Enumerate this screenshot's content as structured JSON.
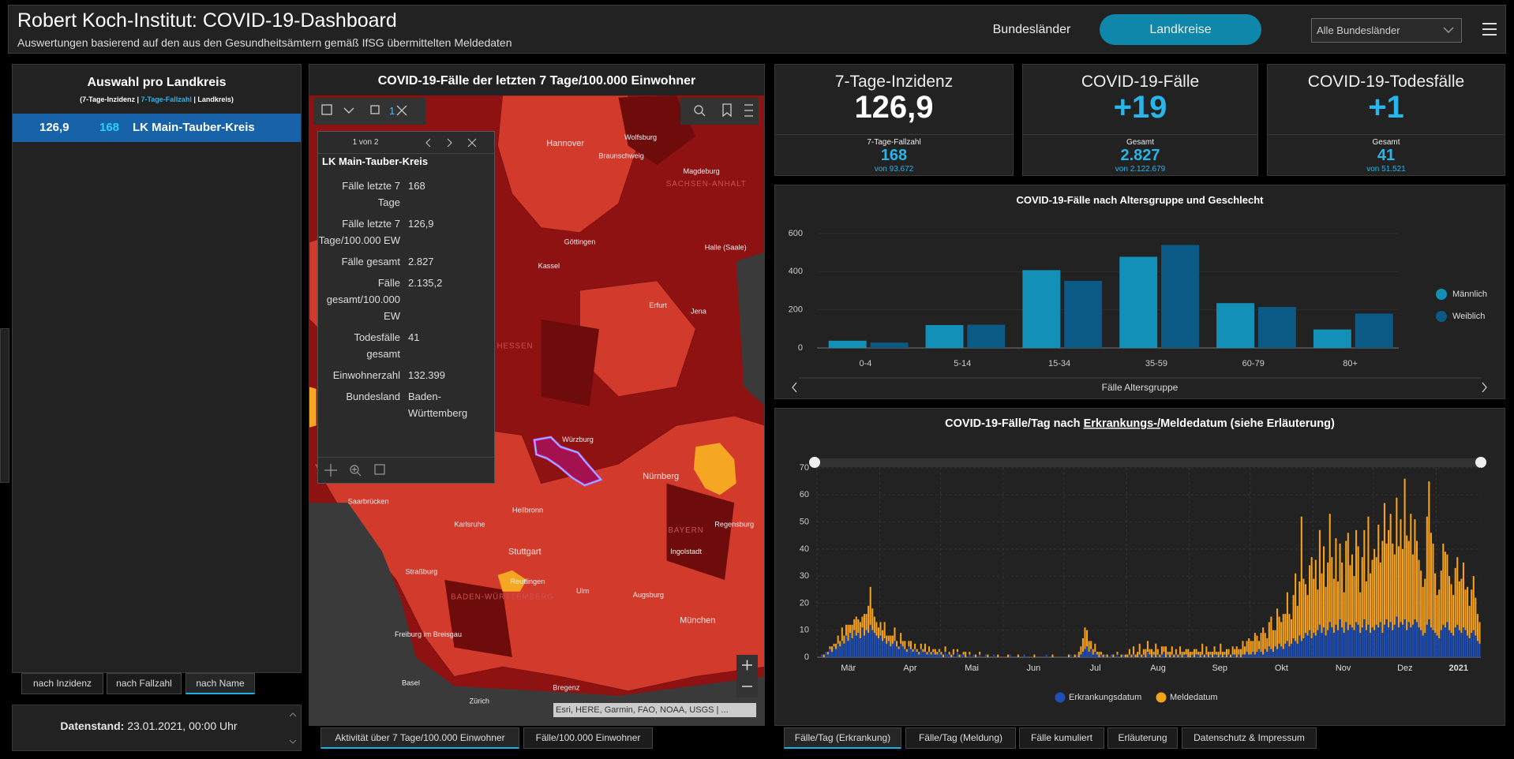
{
  "header": {
    "title": "Robert Koch-Institut: COVID-19-Dashboard",
    "subtitle": "Auswertungen basierend auf den aus den Gesundheitsämtern gemäß IfSG übermittelten Meldedaten",
    "tabs": [
      "Bundesländer",
      "Landkreise"
    ],
    "active_tab": 1,
    "dropdown": "Alle Bundesländer"
  },
  "left_panel": {
    "title": "Auswahl pro Landkreis",
    "subtitle_parts": [
      "(7-Tage-Inzidenz | ",
      "7-Tage-Fallzahl",
      " | Landkreis)"
    ],
    "rows": [
      [
        "126,9",
        "168",
        "LK Main-Tauber-Kreis"
      ]
    ],
    "sort_buttons": [
      "nach Inzidenz",
      "nach Fallzahl",
      "nach Name"
    ],
    "active_sort": 2,
    "date_label": "Datenstand:",
    "date_value": "23.01.2021, 00:00 Uhr"
  },
  "map": {
    "title": "COVID-19-Fälle der letzten 7 Tage/100.000 Einwohner",
    "selection_count": "1",
    "labels": [
      "Hannover",
      "Wolfsburg",
      "Braunschweig",
      "Magdeburg",
      "SACHSEN-ANHALT",
      "Göttingen",
      "Kassel",
      "Halle (Saale)",
      "Erfurt",
      "Jena",
      "HESSEN",
      "Würzburg",
      "Nürnberg",
      "Saarbrücken",
      "Heilbronn",
      "Karlsruhe",
      "BAYERN",
      "Regensburg",
      "Ingolstadt",
      "Stuttgart",
      "Straßburg",
      "Reutlingen",
      "BADEN-WÜRTTEMBERG",
      "Ulm",
      "Augsburg",
      "München",
      "Freiburg im Breisgau",
      "Basel",
      "Zürich",
      "Bregenz"
    ],
    "attribution": "Esri, HERE, Garmin, FAO, NOAA, USGS | ...",
    "popup": {
      "pager": "1 von 2",
      "title": "LK Main-Tauber-Kreis",
      "fields": [
        [
          "Fälle letzte 7 Tage",
          "168"
        ],
        [
          "Fälle letzte 7 Tage/100.000 EW",
          "126,9"
        ],
        [
          "Fälle gesamt",
          "2.827"
        ],
        [
          "Fälle gesamt/100.000 EW",
          "2.135,2"
        ],
        [
          "Todesfälle gesamt",
          "41"
        ],
        [
          "Einwohnerzahl",
          "132.399"
        ],
        [
          "Bundesland",
          "Baden-Württemberg"
        ]
      ]
    },
    "tabs": [
      "Aktivität über 7 Tage/100.000 Einwohner",
      "Fälle/100.000 Einwohner"
    ],
    "active_tab": 0
  },
  "kpis": [
    {
      "title": "7-Tage-Inzidenz",
      "value": "126,9",
      "color": "#ffffff",
      "sub_label": "7-Tage-Fallzahl",
      "sub_value": "168",
      "total": "von 93.672"
    },
    {
      "title": "COVID-19-Fälle",
      "value": "+19",
      "color": "#27b5ea",
      "sub_label": "Gesamt",
      "sub_value": "2.827",
      "total": "von 2.122.679"
    },
    {
      "title": "COVID-19-Todesfälle",
      "value": "+1",
      "color": "#27b5ea",
      "sub_label": "Gesamt",
      "sub_value": "41",
      "total": "von 51.521"
    }
  ],
  "age_chart": {
    "type": "bar",
    "title": "COVID-19-Fälle nach Altersgruppe und Geschlecht",
    "xlabel": "Fälle Altersgruppe",
    "categories": [
      "0-4",
      "5-14",
      "15-34",
      "35-59",
      "60-79",
      "80+"
    ],
    "series": [
      {
        "name": "Männlich",
        "color": "#1390b8",
        "values": [
          38,
          120,
          408,
          478,
          235,
          97
        ]
      },
      {
        "name": "Weiblich",
        "color": "#0b5a86",
        "values": [
          28,
          122,
          352,
          540,
          215,
          180
        ]
      }
    ],
    "ylim": [
      0,
      600
    ],
    "yticks": [
      0,
      200,
      400,
      600
    ],
    "grid": true,
    "legend": "right"
  },
  "daily_chart": {
    "type": "bar",
    "stacked": true,
    "title_parts": [
      "COVID-19-Fälle/Tag nach ",
      "Erkrankungs-/",
      "Meldedatum (siehe Erläuterung)"
    ],
    "xlim": [
      "2020-03-01",
      "2021-01-23"
    ],
    "xticks": [
      {
        "value": "2020-03-01",
        "label": "Mär"
      },
      {
        "value": "2020-04-01",
        "label": "Apr"
      },
      {
        "value": "2020-05-01",
        "label": "Mai"
      },
      {
        "value": "2020-06-01",
        "label": "Jun"
      },
      {
        "value": "2020-07-01",
        "label": "Jul"
      },
      {
        "value": "2020-08-01",
        "label": "Aug"
      },
      {
        "value": "2020-09-01",
        "label": "Sep"
      },
      {
        "value": "2020-10-01",
        "label": "Okt"
      },
      {
        "value": "2020-11-01",
        "label": "Nov"
      },
      {
        "value": "2020-12-01",
        "label": "Dez"
      },
      {
        "value": "2021-01-01",
        "label": "2021"
      }
    ],
    "ylim": [
      0,
      70
    ],
    "yticks": [
      0,
      10,
      20,
      30,
      40,
      50,
      60,
      70
    ],
    "grid": true,
    "legend": "bottom",
    "series": [
      {
        "name": "Erkrankungsdatum",
        "color": "#1f4fb5",
        "values": [
          0,
          0,
          1,
          0,
          2,
          1,
          3,
          2,
          4,
          3,
          5,
          4,
          6,
          5,
          8,
          6,
          9,
          7,
          10,
          8,
          9,
          7,
          11,
          8,
          10,
          9,
          12,
          10,
          9,
          8,
          7,
          8,
          6,
          7,
          5,
          6,
          4,
          5,
          6,
          4,
          3,
          5,
          4,
          3,
          2,
          4,
          3,
          2,
          3,
          2,
          1,
          3,
          2,
          2,
          1,
          2,
          1,
          2,
          1,
          1,
          2,
          1,
          0,
          2,
          1,
          1,
          0,
          1,
          0,
          2,
          0,
          1,
          1,
          0,
          0,
          1,
          0,
          1,
          0,
          0,
          1,
          0,
          0,
          1,
          0,
          0,
          0,
          1,
          0,
          0,
          0,
          0,
          0,
          0,
          0,
          1,
          0,
          0,
          0,
          0,
          0,
          0,
          1,
          0,
          0,
          0,
          0,
          0,
          0,
          0,
          0,
          0,
          0,
          1,
          0,
          0,
          0,
          0,
          0,
          0,
          0,
          0,
          0,
          0,
          0,
          1,
          0,
          0,
          1,
          0,
          1,
          2,
          3,
          4,
          2,
          3,
          1,
          2,
          1,
          0,
          1,
          0,
          1,
          0,
          0,
          1,
          0,
          0,
          1,
          0,
          0,
          1,
          0,
          0,
          1,
          0,
          1,
          0,
          0,
          1,
          0,
          1,
          0,
          2,
          1,
          0,
          1,
          0,
          1,
          0,
          1,
          2,
          0,
          1,
          0,
          1,
          0,
          1,
          0,
          1,
          0,
          1,
          1,
          0,
          0,
          1,
          0,
          1,
          1,
          0,
          1,
          0,
          1,
          0,
          1,
          0,
          1,
          1,
          0,
          1,
          0,
          1,
          0,
          1,
          0,
          1,
          1,
          0,
          1,
          0,
          1,
          1,
          2,
          1,
          1,
          2,
          1,
          2,
          3,
          2,
          1,
          3,
          2,
          4,
          3,
          2,
          4,
          3,
          5,
          4,
          3,
          5,
          6,
          4,
          5,
          7,
          6,
          5,
          8,
          6,
          7,
          9,
          8,
          10,
          7,
          9,
          8,
          10,
          12,
          9,
          11,
          8,
          10,
          13,
          11,
          9,
          12,
          10,
          14,
          11,
          9,
          13,
          10,
          12,
          11,
          10,
          13,
          12,
          9,
          11,
          14,
          10,
          12,
          9,
          11,
          10,
          12,
          11,
          13,
          9,
          12,
          14,
          11,
          13,
          10,
          12,
          15,
          11,
          13,
          12,
          14,
          10,
          13,
          11,
          12,
          14,
          13,
          11,
          10,
          8,
          9,
          12,
          14,
          11,
          10,
          9,
          8,
          7,
          10,
          12,
          11,
          13,
          10,
          9,
          8,
          11,
          12,
          10,
          9,
          11,
          10,
          8,
          7,
          9,
          10,
          8,
          6,
          5
        ]
      },
      {
        "name": "Meldedatum",
        "color": "#f7a21b",
        "values": [
          0,
          0,
          0,
          1,
          0,
          1,
          1,
          2,
          1,
          2,
          3,
          2,
          5,
          3,
          4,
          6,
          3,
          5,
          4,
          7,
          5,
          6,
          4,
          8,
          6,
          10,
          14,
          8,
          6,
          5,
          4,
          5,
          4,
          6,
          3,
          2,
          4,
          3,
          5,
          2,
          1,
          4,
          2,
          3,
          1,
          2,
          3,
          1,
          2,
          1,
          1,
          2,
          1,
          3,
          1,
          2,
          1,
          1,
          2,
          1,
          1,
          1,
          1,
          2,
          0,
          1,
          1,
          2,
          0,
          1,
          1,
          0,
          1,
          2,
          0,
          1,
          0,
          0,
          1,
          0,
          1,
          0,
          0,
          0,
          1,
          0,
          0,
          0,
          0,
          1,
          0,
          0,
          0,
          0,
          1,
          0,
          0,
          0,
          0,
          1,
          0,
          0,
          0,
          0,
          0,
          0,
          0,
          1,
          0,
          0,
          0,
          0,
          0,
          0,
          0,
          0,
          1,
          0,
          0,
          0,
          0,
          0,
          0,
          0,
          1,
          0,
          0,
          1,
          0,
          2,
          3,
          5,
          8,
          6,
          4,
          3,
          2,
          3,
          1,
          2,
          1,
          1,
          0,
          1,
          0,
          0,
          1,
          0,
          1,
          0,
          1,
          0,
          1,
          1,
          2,
          1,
          3,
          1,
          2,
          4,
          1,
          2,
          3,
          4,
          2,
          3,
          1,
          5,
          2,
          1,
          3,
          2,
          4,
          1,
          2,
          3,
          1,
          2,
          1,
          3,
          2,
          1,
          2,
          3,
          2,
          1,
          3,
          2,
          1,
          2,
          4,
          1,
          3,
          2,
          1,
          2,
          3,
          1,
          2,
          4,
          2,
          1,
          3,
          2,
          1,
          3,
          2,
          4,
          2,
          3,
          5,
          3,
          4,
          6,
          5,
          4,
          8,
          6,
          3,
          7,
          10,
          6,
          5,
          9,
          12,
          8,
          6,
          15,
          10,
          9,
          13,
          11,
          18,
          12,
          9,
          16,
          25,
          14,
          20,
          46,
          22,
          18,
          15,
          24,
          30,
          20,
          28,
          15,
          35,
          22,
          30,
          18,
          25,
          40,
          26,
          20,
          32,
          18,
          28,
          24,
          15,
          30,
          36,
          22,
          27,
          20,
          34,
          29,
          15,
          26,
          33,
          18,
          40,
          22,
          25,
          30,
          25,
          38,
          22,
          34,
          45,
          28,
          36,
          40,
          32,
          26,
          44,
          30,
          38,
          28,
          52,
          35,
          30,
          42,
          26,
          37,
          30,
          25,
          22,
          18,
          20,
          40,
          51,
          35,
          32,
          22,
          15,
          18,
          22,
          30,
          28,
          25,
          20,
          18,
          15,
          22,
          25,
          18,
          20,
          24,
          15,
          18,
          12,
          16,
          20,
          14,
          10,
          8
        ]
      }
    ]
  },
  "bottom_tabs": [
    "Fälle/Tag (Erkrankung)",
    "Fälle/Tag (Meldung)",
    "Fälle kumuliert",
    "Erläuterung",
    "Datenschutz & Impressum"
  ],
  "active_bottom_tab": 0
}
